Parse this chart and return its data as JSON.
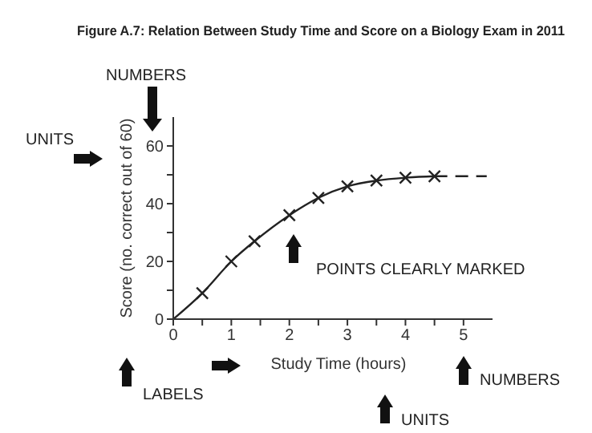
{
  "chart_data": {
    "type": "line",
    "title": "Figure A.7: Relation Between Study Time and Score on a Biology Exam in 2011",
    "xlabel": "Study Time (hours)",
    "ylabel": "Score (no. correct out of 60)",
    "series": [
      {
        "type": "scatter",
        "marker": "cross",
        "color": "#222222",
        "x": [
          0.5,
          1,
          1.4,
          2,
          2.5,
          3,
          3.5,
          4,
          4.5
        ],
        "values": [
          9,
          20,
          27,
          36,
          42,
          46,
          48,
          49,
          49.5
        ]
      },
      {
        "marker": "none",
        "line_style": "solid",
        "color": "#222222",
        "x": [
          0,
          0.5,
          1,
          1.4,
          2,
          2.5,
          3,
          3.5,
          4,
          4.5
        ],
        "values": [
          0,
          9,
          20,
          27,
          36,
          42,
          46,
          48,
          49,
          49.5
        ]
      },
      {
        "marker": "none",
        "line_style": "dashed",
        "color": "#222222",
        "x": [
          4.5,
          5.4
        ],
        "values": [
          49.5,
          49.5
        ]
      }
    ],
    "xlim": [
      0,
      5.5
    ],
    "xticks": [
      0,
      {
        "value": 0.5,
        "label": null
      },
      1,
      {
        "value": 1.5,
        "label": null
      },
      2,
      {
        "value": 2.5,
        "label": null
      },
      3,
      {
        "value": 3.5,
        "label": null
      },
      4,
      {
        "value": 4.5,
        "label": null
      },
      5
    ],
    "ylim": [
      0,
      70
    ],
    "yticks": [
      0,
      {
        "value": 10,
        "label": null
      },
      20,
      {
        "value": 30,
        "label": null
      },
      40,
      {
        "value": 50,
        "label": null
      },
      60
    ],
    "grid": false,
    "legend": false,
    "annotations": [
      "NUMBERS",
      "UNITS",
      "POINTS CLEARLY MARKED",
      "LABELS",
      "UNITS",
      "NUMBERS"
    ]
  }
}
